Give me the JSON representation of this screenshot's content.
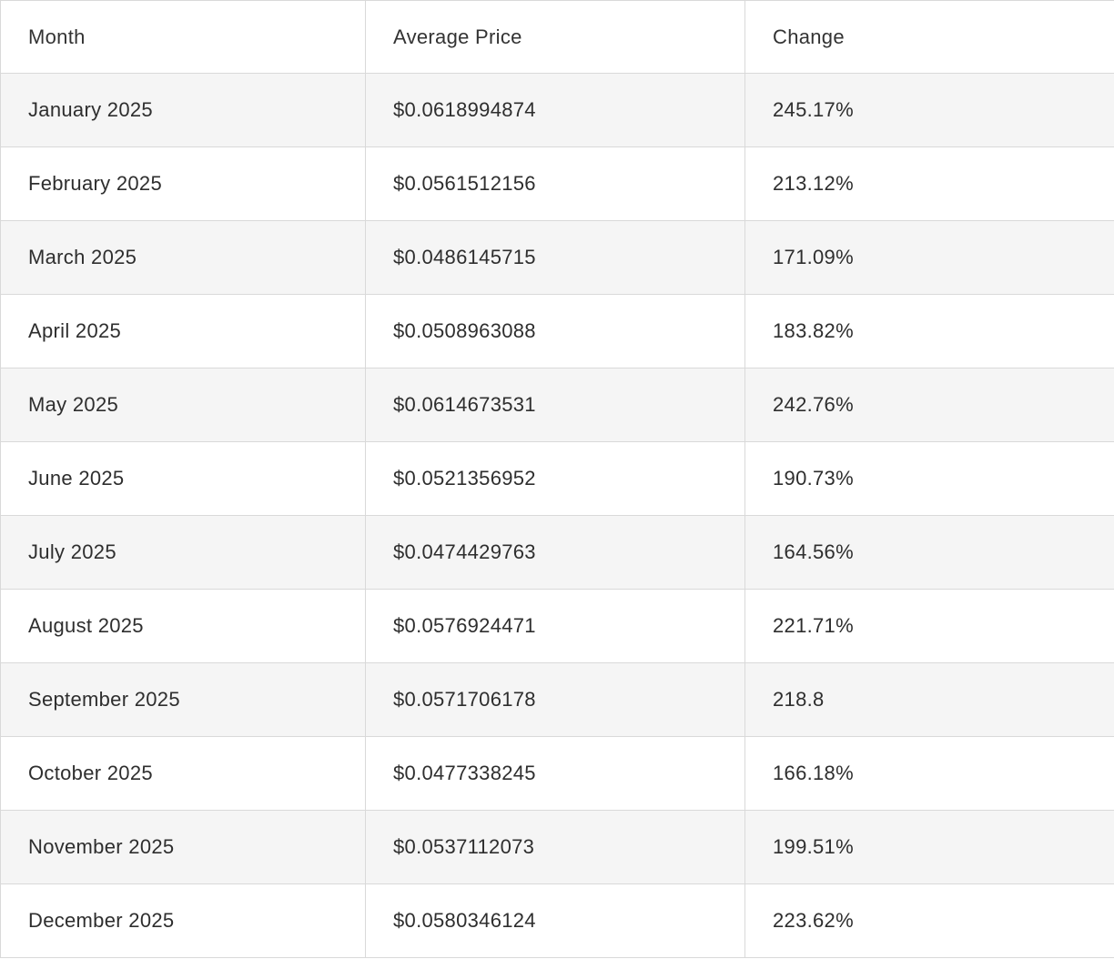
{
  "table": {
    "headers": [
      "Month",
      "Average Price",
      "Change"
    ],
    "rows": [
      {
        "month": "January 2025",
        "price": "$0.0618994874",
        "change": "245.17%"
      },
      {
        "month": "February 2025",
        "price": "$0.0561512156",
        "change": "213.12%"
      },
      {
        "month": "March 2025",
        "price": "$0.0486145715",
        "change": "171.09%"
      },
      {
        "month": "April 2025",
        "price": "$0.0508963088",
        "change": "183.82%"
      },
      {
        "month": "May 2025",
        "price": "$0.0614673531",
        "change": "242.76%"
      },
      {
        "month": "June 2025",
        "price": "$0.0521356952",
        "change": "190.73%"
      },
      {
        "month": "July 2025",
        "price": "$0.0474429763",
        "change": "164.56%"
      },
      {
        "month": "August 2025",
        "price": "$0.0576924471",
        "change": "221.71%"
      },
      {
        "month": "September 2025",
        "price": "$0.0571706178",
        "change": "218.8"
      },
      {
        "month": "October 2025",
        "price": "$0.0477338245",
        "change": "166.18%"
      },
      {
        "month": "November 2025",
        "price": "$0.0537112073",
        "change": "199.51%"
      },
      {
        "month": "December 2025",
        "price": "$0.0580346124",
        "change": "223.62%"
      }
    ]
  },
  "chart_data": {
    "type": "table",
    "title": "",
    "columns": [
      "Month",
      "Average Price",
      "Change"
    ],
    "months": [
      "January 2025",
      "February 2025",
      "March 2025",
      "April 2025",
      "May 2025",
      "June 2025",
      "July 2025",
      "August 2025",
      "September 2025",
      "October 2025",
      "November 2025",
      "December 2025"
    ],
    "average_price_usd": [
      0.0618994874,
      0.0561512156,
      0.0486145715,
      0.0508963088,
      0.0614673531,
      0.0521356952,
      0.0474429763,
      0.0576924471,
      0.0571706178,
      0.0477338245,
      0.0537112073,
      0.0580346124
    ],
    "change_percent": [
      245.17,
      213.12,
      171.09,
      183.82,
      242.76,
      190.73,
      164.56,
      221.71,
      218.8,
      166.18,
      199.51,
      223.62
    ],
    "layout": {
      "striped_rows": true,
      "stripe_color": "#f5f5f5",
      "border_color": "#d9d9d9",
      "text_color": "#2e2e2e"
    }
  }
}
